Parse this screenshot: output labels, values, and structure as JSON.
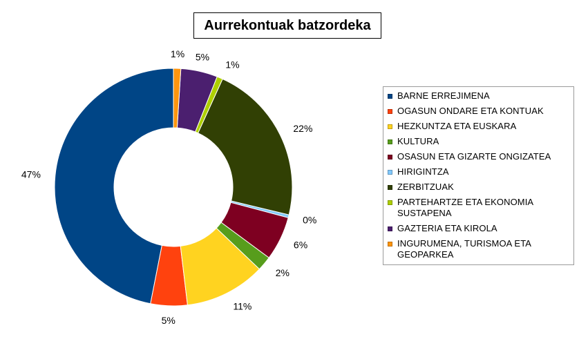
{
  "chart_data": {
    "type": "pie",
    "title": "Aurrekontuak batzordeka",
    "legend_position": "right",
    "donut": true,
    "series": [
      {
        "name": "BARNE ERREJIMENA",
        "value": 47,
        "label": "47%",
        "color": "#004586"
      },
      {
        "name": "OGASUN ONDARE ETA KONTUAK",
        "value": 5,
        "label": "5%",
        "color": "#ff420e"
      },
      {
        "name": "HEZKUNTZA ETA EUSKARA",
        "value": 11,
        "label": "11%",
        "color": "#ffd320"
      },
      {
        "name": "KULTURA",
        "value": 2,
        "label": "2%",
        "color": "#579d1c"
      },
      {
        "name": "OSASUN ETA GIZARTE ONGIZATEA",
        "value": 6,
        "label": "6%",
        "color": "#7e0021"
      },
      {
        "name": "HIRIGINTZA",
        "value": 0.4,
        "label": "0%",
        "color": "#83caff"
      },
      {
        "name": "ZERBITZUAK",
        "value": 22,
        "label": "22%",
        "color": "#314004"
      },
      {
        "name": "PARTEHARTZE ETA EKONOMIA SUSTAPENA",
        "value": 0.8,
        "label": "1%",
        "color": "#aecf00"
      },
      {
        "name": "GAZTERIA ETA KIROLA",
        "value": 5,
        "label": "5%",
        "color": "#4b1f6f"
      },
      {
        "name": "INGURUMENA, TURISMOA ETA GEOPARKEA",
        "value": 1,
        "label": "1%",
        "color": "#ff950e"
      }
    ]
  }
}
